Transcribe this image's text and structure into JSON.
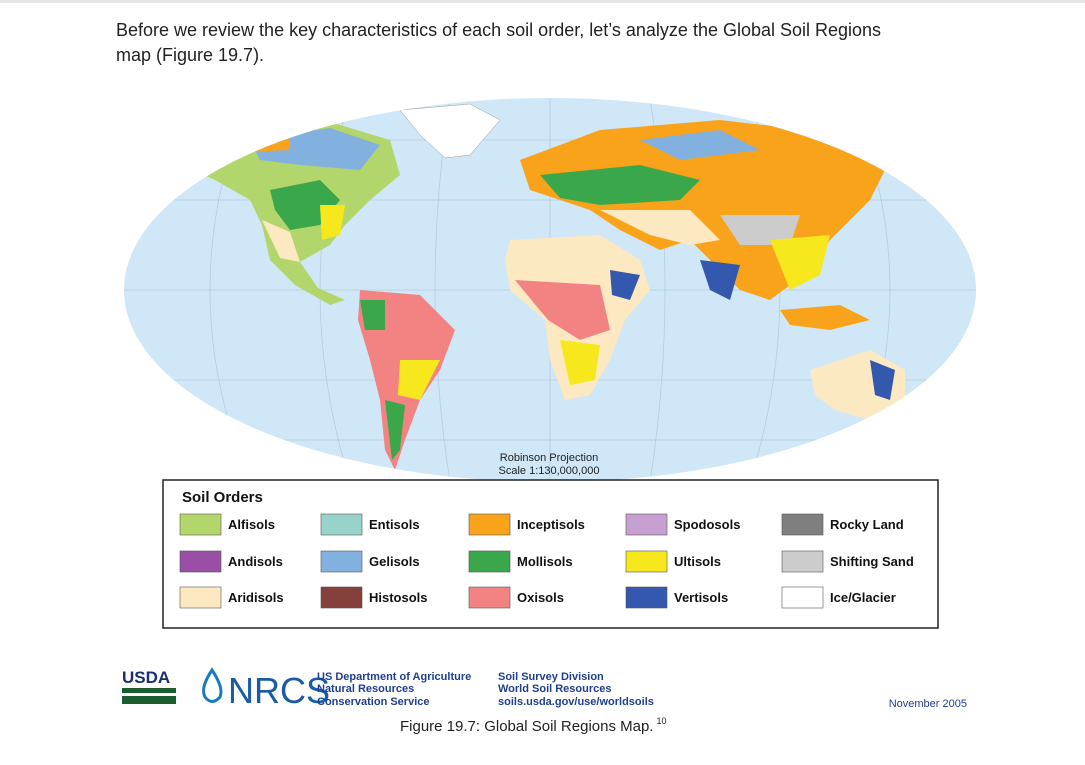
{
  "paragraph": {
    "lines": [
      "Before we review the key characteristics of each soil order, let’s analyze the Global Soil Regions",
      "map (Figure 19.7)."
    ]
  },
  "map": {
    "projection": "Robinson Projection",
    "scale": "Scale 1:130,000,000"
  },
  "legend": {
    "title": "Soil Orders",
    "items": [
      {
        "label": "Alfisols",
        "color": "#b3d66c"
      },
      {
        "label": "Andisols",
        "color": "#9a4fa6"
      },
      {
        "label": "Aridisols",
        "color": "#fde9c1"
      },
      {
        "label": "Entisols",
        "color": "#98d3cb"
      },
      {
        "label": "Gelisols",
        "color": "#83b1df"
      },
      {
        "label": "Histosols",
        "color": "#85403c"
      },
      {
        "label": "Inceptisols",
        "color": "#f9a31b"
      },
      {
        "label": "Mollisols",
        "color": "#3aa84a"
      },
      {
        "label": "Oxisols",
        "color": "#f38383"
      },
      {
        "label": "Spodosols",
        "color": "#c6a0d1"
      },
      {
        "label": "Ultisols",
        "color": "#f6e81c"
      },
      {
        "label": "Vertisols",
        "color": "#3458ad"
      },
      {
        "label": "Rocky Land",
        "color": "#7f7f7f"
      },
      {
        "label": "Shifting Sand",
        "color": "#cccccc"
      },
      {
        "label": "Ice/Glacier",
        "color": "#ffffff"
      }
    ]
  },
  "footer": {
    "usda": "USDA",
    "nrcs": "NRCS",
    "agency": [
      "US Department of Agriculture",
      "Natural Resources",
      "Conservation Service"
    ],
    "division": [
      "Soil Survey Division",
      "World Soil Resources",
      "soils.usda.gov/use/worldsoils"
    ],
    "date": "November 2005"
  },
  "caption": {
    "text": "Figure 19.7: Global Soil Regions Map.",
    "footnote": "10"
  }
}
